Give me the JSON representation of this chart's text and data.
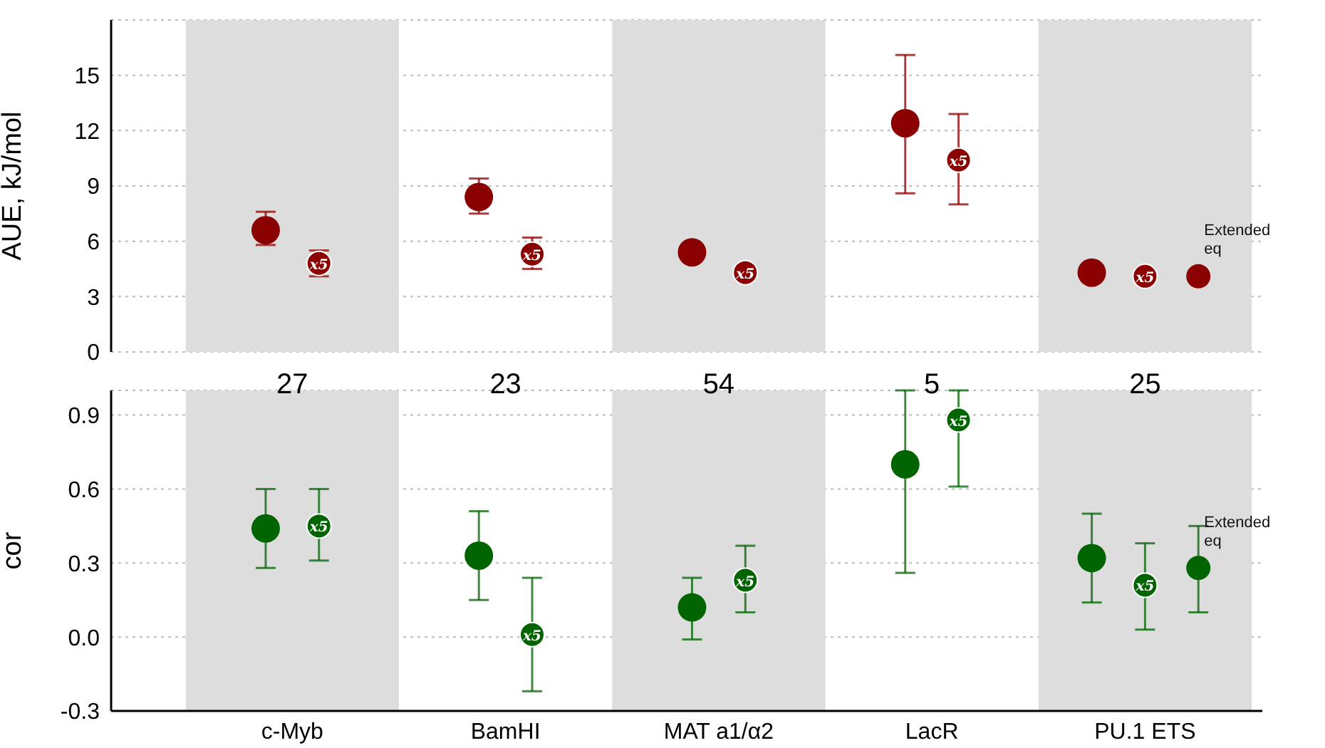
{
  "chart_data": [
    {
      "type": "scatter",
      "ylabel": "AUE, kJ/mol",
      "categories": [
        "c-Myb",
        "BamHI",
        "MAT a1/α2",
        "LacR",
        "PU.1 ETS"
      ],
      "ylim": [
        0,
        18
      ],
      "yticks": [
        0,
        3,
        6,
        9,
        12,
        15
      ],
      "grid": "y",
      "tick_labels": "y",
      "marker": "circle",
      "bands": [
        {
          "axis": "x",
          "from": "c-Myb",
          "to": "c-Myb",
          "color": "#dddddd"
        },
        {
          "axis": "x",
          "from": "MAT a1/α2",
          "to": "MAT a1/α2",
          "color": "#dddddd"
        },
        {
          "axis": "x",
          "from": "PU.1 ETS",
          "to": "PU.1 ETS",
          "color": "#dddddd"
        }
      ],
      "series": [
        {
          "color": "#8b0000",
          "values": [
            6.6,
            8.4,
            5.4,
            12.4,
            4.3
          ],
          "errors": [
            [
              5.8,
              7.6
            ],
            [
              7.5,
              9.4
            ],
            null,
            [
              8.6,
              16.1
            ],
            null
          ]
        },
        {
          "name": "x5",
          "color": "#8b0000",
          "values": [
            4.8,
            5.3,
            4.3,
            10.4,
            4.1
          ],
          "errors": [
            [
              4.1,
              5.5
            ],
            [
              4.5,
              6.2
            ],
            null,
            [
              8.0,
              12.9
            ],
            null
          ]
        },
        {
          "name": "Extended eq",
          "color": "#8b0000",
          "values": [
            null,
            null,
            null,
            null,
            4.1
          ]
        }
      ]
    },
    {
      "type": "scatter",
      "ylabel": "cor",
      "categories": [
        "c-Myb",
        "BamHI",
        "MAT a1/α2",
        "LacR",
        "PU.1 ETS"
      ],
      "ylim": [
        -0.3,
        1.0
      ],
      "yticks": [
        -0.3,
        {
          "value": 0,
          "label": "0.0"
        },
        0.3,
        0.6,
        0.9
      ],
      "grid": "y",
      "marker": "circle",
      "bands": [
        {
          "axis": "x",
          "from": "c-Myb",
          "to": "c-Myb",
          "color": "#dddddd"
        },
        {
          "axis": "x",
          "from": "MAT a1/α2",
          "to": "MAT a1/α2",
          "color": "#dddddd"
        },
        {
          "axis": "x",
          "from": "PU.1 ETS",
          "to": "PU.1 ETS",
          "color": "#dddddd"
        }
      ],
      "annotations": [
        "27",
        "23",
        "54",
        "5",
        "25"
      ],
      "series": [
        {
          "color": "#006400",
          "values": [
            0.44,
            0.33,
            0.12,
            0.7,
            0.32
          ],
          "errors": [
            [
              0.28,
              0.6
            ],
            [
              0.15,
              0.51
            ],
            [
              -0.01,
              0.24
            ],
            [
              0.26,
              1.0
            ],
            [
              0.14,
              0.5
            ]
          ]
        },
        {
          "name": "x5",
          "color": "#006400",
          "values": [
            0.45,
            0.01,
            0.23,
            0.88,
            0.21
          ],
          "errors": [
            [
              0.31,
              0.6
            ],
            [
              -0.22,
              0.24
            ],
            [
              0.1,
              0.37
            ],
            [
              0.61,
              1.0
            ],
            [
              0.03,
              0.38
            ]
          ]
        },
        {
          "name": "Extended eq",
          "color": "#006400",
          "values": [
            null,
            null,
            null,
            null,
            0.28
          ],
          "errors": [
            null,
            null,
            null,
            null,
            [
              0.1,
              0.45
            ]
          ]
        }
      ]
    }
  ]
}
